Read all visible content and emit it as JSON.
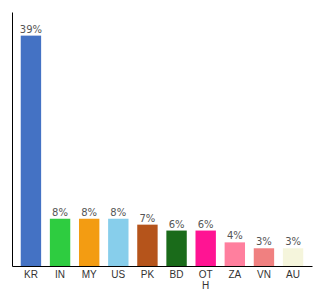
{
  "chart_data": {
    "type": "bar",
    "categories": [
      "KR",
      "IN",
      "MY",
      "US",
      "PK",
      "BD",
      "OT\nH",
      "ZA",
      "VN",
      "AU"
    ],
    "values": [
      39,
      8,
      8,
      8,
      7,
      6,
      6,
      4,
      3,
      3
    ],
    "value_labels": [
      "39%",
      "8%",
      "8%",
      "8%",
      "7%",
      "6%",
      "6%",
      "4%",
      "3%",
      "3%"
    ],
    "colors": [
      "#4472c4",
      "#2ecc40",
      "#f39c12",
      "#87ceeb",
      "#b5541b",
      "#1a6b1a",
      "#ff1493",
      "#ff7f9e",
      "#f08080",
      "#f5f5dc"
    ],
    "ylim": [
      0,
      43
    ],
    "data_labels": true,
    "tick_labels": "x",
    "grid": false
  }
}
